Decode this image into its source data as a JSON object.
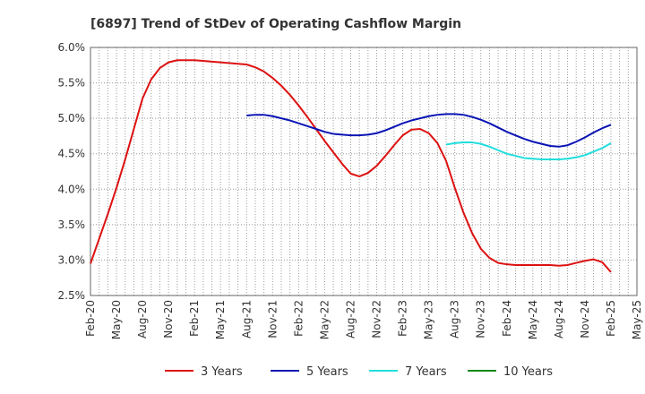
{
  "chart_data": {
    "type": "line",
    "title": "[6897]  Trend of StDev of Operating Cashflow Margin",
    "ylim": [
      2.5,
      6.0
    ],
    "y_ticks": [
      "2.5%",
      "3.0%",
      "3.5%",
      "4.0%",
      "4.5%",
      "5.0%",
      "5.5%",
      "6.0%"
    ],
    "x_ticks": [
      "Feb-20",
      "May-20",
      "Aug-20",
      "Nov-20",
      "Feb-21",
      "May-21",
      "Aug-21",
      "Nov-21",
      "Feb-22",
      "May-22",
      "Aug-22",
      "Nov-22",
      "Feb-23",
      "May-23",
      "Aug-23",
      "Nov-23",
      "Feb-24",
      "May-24",
      "Aug-24",
      "Nov-24",
      "Feb-25",
      "May-25"
    ],
    "grid": true,
    "legend_position": "bottom",
    "series": [
      {
        "name": "3 Years",
        "color": "#dd1111",
        "points": [
          [
            "Feb-20",
            2.95
          ],
          [
            "Mar-20",
            3.3
          ],
          [
            "Apr-20",
            3.65
          ],
          [
            "May-20",
            4.02
          ],
          [
            "Jun-20",
            4.42
          ],
          [
            "Jul-20",
            4.85
          ],
          [
            "Aug-20",
            5.28
          ],
          [
            "Sep-20",
            5.55
          ],
          [
            "Oct-20",
            5.71
          ],
          [
            "Nov-20",
            5.79
          ],
          [
            "Dec-20",
            5.82
          ],
          [
            "Jan-21",
            5.82
          ],
          [
            "Feb-21",
            5.82
          ],
          [
            "Mar-21",
            5.81
          ],
          [
            "Apr-21",
            5.8
          ],
          [
            "May-21",
            5.79
          ],
          [
            "Jun-21",
            5.78
          ],
          [
            "Jul-21",
            5.77
          ],
          [
            "Aug-21",
            5.76
          ],
          [
            "Sep-21",
            5.72
          ],
          [
            "Oct-21",
            5.66
          ],
          [
            "Nov-21",
            5.57
          ],
          [
            "Dec-21",
            5.46
          ],
          [
            "Jan-22",
            5.33
          ],
          [
            "Feb-22",
            5.18
          ],
          [
            "Mar-22",
            5.02
          ],
          [
            "Apr-22",
            4.85
          ],
          [
            "May-22",
            4.68
          ],
          [
            "Jun-22",
            4.52
          ],
          [
            "Jul-22",
            4.36
          ],
          [
            "Aug-22",
            4.22
          ],
          [
            "Sep-22",
            4.18
          ],
          [
            "Oct-22",
            4.23
          ],
          [
            "Nov-22",
            4.33
          ],
          [
            "Dec-22",
            4.47
          ],
          [
            "Jan-23",
            4.62
          ],
          [
            "Feb-23",
            4.76
          ],
          [
            "Mar-23",
            4.84
          ],
          [
            "Apr-23",
            4.85
          ],
          [
            "May-23",
            4.79
          ],
          [
            "Jun-23",
            4.65
          ],
          [
            "Jul-23",
            4.4
          ],
          [
            "Aug-23",
            4.02
          ],
          [
            "Sep-23",
            3.67
          ],
          [
            "Oct-23",
            3.38
          ],
          [
            "Nov-23",
            3.16
          ],
          [
            "Dec-23",
            3.03
          ],
          [
            "Jan-24",
            2.96
          ],
          [
            "Feb-24",
            2.94
          ],
          [
            "Mar-24",
            2.93
          ],
          [
            "Apr-24",
            2.93
          ],
          [
            "May-24",
            2.93
          ],
          [
            "Jun-24",
            2.93
          ],
          [
            "Jul-24",
            2.93
          ],
          [
            "Aug-24",
            2.92
          ],
          [
            "Sep-24",
            2.93
          ],
          [
            "Oct-24",
            2.96
          ],
          [
            "Nov-24",
            2.99
          ],
          [
            "Dec-24",
            3.01
          ],
          [
            "Jan-25",
            2.97
          ],
          [
            "Feb-25",
            2.83
          ]
        ]
      },
      {
        "name": "5 Years",
        "color": "#0a14b4",
        "points": [
          [
            "Aug-21",
            5.04
          ],
          [
            "Sep-21",
            5.05
          ],
          [
            "Oct-21",
            5.05
          ],
          [
            "Nov-21",
            5.03
          ],
          [
            "Dec-21",
            5.0
          ],
          [
            "Jan-22",
            4.97
          ],
          [
            "Feb-22",
            4.93
          ],
          [
            "Mar-22",
            4.89
          ],
          [
            "Apr-22",
            4.85
          ],
          [
            "May-22",
            4.81
          ],
          [
            "Jun-22",
            4.78
          ],
          [
            "Jul-22",
            4.77
          ],
          [
            "Aug-22",
            4.76
          ],
          [
            "Sep-22",
            4.76
          ],
          [
            "Oct-22",
            4.77
          ],
          [
            "Nov-22",
            4.79
          ],
          [
            "Dec-22",
            4.83
          ],
          [
            "Jan-23",
            4.88
          ],
          [
            "Feb-23",
            4.93
          ],
          [
            "Mar-23",
            4.97
          ],
          [
            "Apr-23",
            5.0
          ],
          [
            "May-23",
            5.03
          ],
          [
            "Jun-23",
            5.05
          ],
          [
            "Jul-23",
            5.06
          ],
          [
            "Aug-23",
            5.06
          ],
          [
            "Sep-23",
            5.05
          ],
          [
            "Oct-23",
            5.02
          ],
          [
            "Nov-23",
            4.98
          ],
          [
            "Dec-23",
            4.93
          ],
          [
            "Jan-24",
            4.87
          ],
          [
            "Feb-24",
            4.81
          ],
          [
            "Mar-24",
            4.76
          ],
          [
            "Apr-24",
            4.71
          ],
          [
            "May-24",
            4.67
          ],
          [
            "Jun-24",
            4.64
          ],
          [
            "Jul-24",
            4.61
          ],
          [
            "Aug-24",
            4.6
          ],
          [
            "Sep-24",
            4.62
          ],
          [
            "Oct-24",
            4.67
          ],
          [
            "Nov-24",
            4.73
          ],
          [
            "Dec-24",
            4.8
          ],
          [
            "Jan-25",
            4.86
          ],
          [
            "Feb-25",
            4.91
          ]
        ]
      },
      {
        "name": "7 Years",
        "color": "#22dddd",
        "points": [
          [
            "Jul-23",
            4.63
          ],
          [
            "Aug-23",
            4.65
          ],
          [
            "Sep-23",
            4.66
          ],
          [
            "Oct-23",
            4.66
          ],
          [
            "Nov-23",
            4.64
          ],
          [
            "Dec-23",
            4.6
          ],
          [
            "Jan-24",
            4.55
          ],
          [
            "Feb-24",
            4.5
          ],
          [
            "Mar-24",
            4.47
          ],
          [
            "Apr-24",
            4.44
          ],
          [
            "May-24",
            4.43
          ],
          [
            "Jun-24",
            4.42
          ],
          [
            "Jul-24",
            4.42
          ],
          [
            "Aug-24",
            4.42
          ],
          [
            "Sep-24",
            4.43
          ],
          [
            "Oct-24",
            4.45
          ],
          [
            "Nov-24",
            4.48
          ],
          [
            "Dec-24",
            4.53
          ],
          [
            "Jan-25",
            4.58
          ],
          [
            "Feb-25",
            4.65
          ]
        ]
      },
      {
        "name": "10 Years",
        "color": "#118811",
        "points": []
      }
    ]
  }
}
